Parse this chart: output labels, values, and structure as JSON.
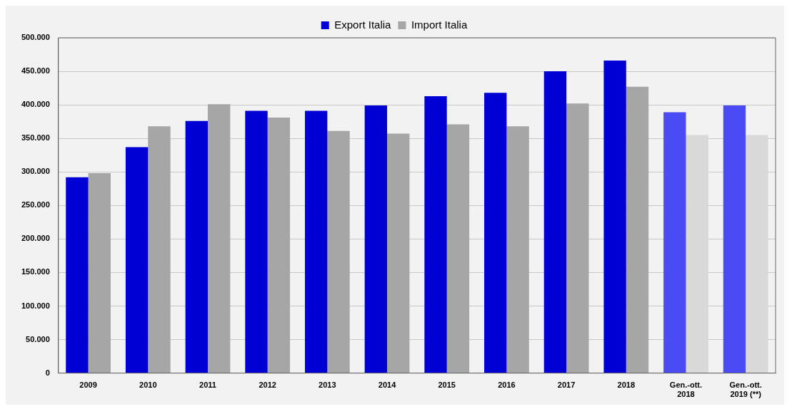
{
  "chart_data": {
    "type": "bar",
    "categories": [
      "2009",
      "2010",
      "2011",
      "2012",
      "2013",
      "2014",
      "2015",
      "2016",
      "2017",
      "2018",
      "Gen.-ott.\n2018",
      "Gen.-ott.\n2019 (**)"
    ],
    "series": [
      {
        "name": "Export Italia",
        "color": "#0000d4",
        "colors": [
          "#0000d4",
          "#0000d4",
          "#0000d4",
          "#0000d4",
          "#0000d4",
          "#0000d4",
          "#0000d4",
          "#0000d4",
          "#0000d4",
          "#0000d4",
          "#4b4bf5",
          "#4b4bf5"
        ],
        "values": [
          292000,
          337000,
          376000,
          391000,
          391000,
          399000,
          413000,
          418000,
          450000,
          466000,
          389000,
          399000
        ]
      },
      {
        "name": "Import Italia",
        "color": "#a6a6a6",
        "colors": [
          "#a6a6a6",
          "#a6a6a6",
          "#a6a6a6",
          "#a6a6a6",
          "#a6a6a6",
          "#a6a6a6",
          "#a6a6a6",
          "#a6a6a6",
          "#a6a6a6",
          "#a6a6a6",
          "#d9d9d9",
          "#d9d9d9"
        ],
        "values": [
          298000,
          368000,
          401000,
          381000,
          361000,
          357000,
          371000,
          368000,
          402000,
          427000,
          355000,
          355000
        ]
      }
    ],
    "ylim": [
      0,
      500000
    ],
    "yticks": [
      0,
      {
        "value": 50000,
        "label": "50.000"
      },
      {
        "value": 100000,
        "label": "100.000"
      },
      {
        "value": 150000,
        "label": "150.000"
      },
      {
        "value": 200000,
        "label": "200.000"
      },
      {
        "value": 250000,
        "label": "250.000"
      },
      {
        "value": 300000,
        "label": "300.000"
      },
      {
        "value": 350000,
        "label": "350.000"
      },
      {
        "value": 400000,
        "label": "400.000"
      },
      {
        "value": 450000,
        "label": "450.000"
      },
      {
        "value": 500000,
        "label": "500.000"
      }
    ],
    "grid": "y",
    "legend": "top"
  }
}
